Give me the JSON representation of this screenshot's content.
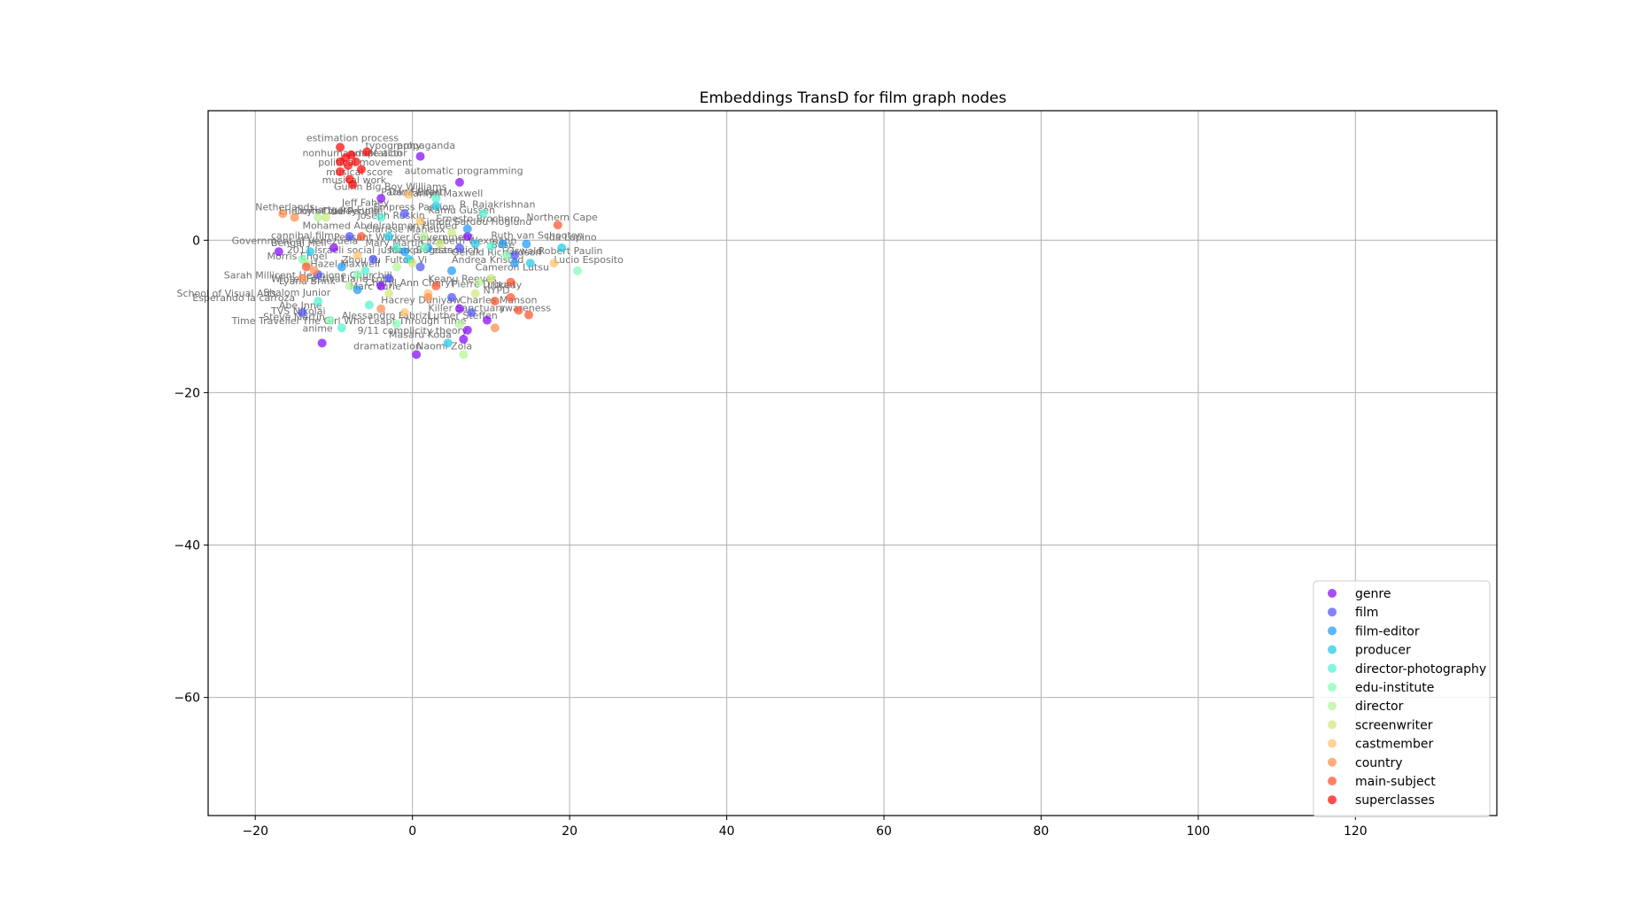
{
  "chart_data": {
    "type": "scatter",
    "title": "Embeddings TransD for film graph nodes",
    "xlabel": "",
    "ylabel": "",
    "xlim": [
      -26,
      138
    ],
    "ylim": [
      -75.5,
      17
    ],
    "xticks": [
      -20,
      0,
      20,
      40,
      60,
      80,
      100,
      120
    ],
    "yticks": [
      -60,
      -40,
      -20,
      0
    ],
    "grid": true,
    "legend_position": "lower-right",
    "colors": {
      "genre": "#8000ff",
      "film": "#4b4ffc",
      "film-editor": "#1a96f3",
      "producer": "#1ac7e6",
      "director-photography": "#4cf2ce",
      "edu-institute": "#7dfdb3",
      "director": "#b2f396",
      "screenwriter": "#cce878",
      "castmember": "#ffc066",
      "country": "#ff8a47",
      "main-subject": "#ff4d24",
      "superclasses": "#ff0000"
    },
    "series": [
      {
        "name": "genre",
        "points": [
          [
            1,
            11
          ],
          [
            6,
            7.6
          ],
          [
            -4,
            5.5
          ],
          [
            -17,
            -1.5
          ],
          [
            -10,
            -1
          ],
          [
            -11.5,
            -13.5
          ],
          [
            0.5,
            -15
          ],
          [
            6.5,
            -13
          ],
          [
            7,
            -11.8
          ],
          [
            9.5,
            -10.5
          ],
          [
            6,
            -9
          ],
          [
            -4,
            -6
          ],
          [
            7,
            0.5
          ]
        ]
      },
      {
        "name": "film",
        "points": [
          [
            -1,
            3.5
          ],
          [
            -12,
            -4.5
          ],
          [
            -3,
            -5
          ],
          [
            -5,
            -2.5
          ],
          [
            -14,
            -9.5
          ],
          [
            5,
            -7.5
          ],
          [
            7.5,
            -9.5
          ],
          [
            13,
            -2
          ],
          [
            1,
            -3.5
          ],
          [
            6,
            -1
          ],
          [
            -8,
            0.5
          ]
        ]
      },
      {
        "name": "film-editor",
        "points": [
          [
            7,
            1.5
          ],
          [
            11.5,
            -0.5
          ],
          [
            14.5,
            -0.5
          ],
          [
            5,
            -4
          ],
          [
            2,
            -1
          ],
          [
            -9,
            -3.5
          ],
          [
            -1,
            -1.5
          ],
          [
            13,
            -3
          ],
          [
            -7,
            -6.5
          ]
        ]
      },
      {
        "name": "producer",
        "points": [
          [
            3,
            4.5
          ],
          [
            -0.5,
            -2.5
          ],
          [
            4.5,
            -13.5
          ],
          [
            19,
            -1
          ],
          [
            -13,
            -1.5
          ],
          [
            15,
            -3
          ],
          [
            8,
            -0.5
          ],
          [
            -3,
            0.5
          ]
        ]
      },
      {
        "name": "director-photography",
        "points": [
          [
            9,
            3.5
          ],
          [
            -5.5,
            -8.5
          ],
          [
            -9,
            -11.5
          ],
          [
            -12,
            -8
          ],
          [
            3,
            5.5
          ],
          [
            -2,
            -1
          ],
          [
            -6,
            -4
          ],
          [
            10,
            -0.8
          ],
          [
            -4,
            3
          ]
        ]
      },
      {
        "name": "edu-institute",
        "points": [
          [
            21,
            -4
          ],
          [
            -7,
            -4.5
          ],
          [
            -10.5,
            -10.5
          ],
          [
            1.5,
            -1
          ],
          [
            12,
            -2
          ],
          [
            -14,
            -2.5
          ],
          [
            -2,
            -11
          ]
        ]
      },
      {
        "name": "director",
        "points": [
          [
            6.5,
            -15
          ],
          [
            -13.5,
            -3
          ],
          [
            -8,
            -6
          ],
          [
            1.5,
            0.5
          ],
          [
            6,
            -11
          ],
          [
            -12,
            3
          ],
          [
            8.5,
            -5.5
          ],
          [
            -2,
            -3.5
          ]
        ]
      },
      {
        "name": "screenwriter",
        "points": [
          [
            -11,
            3
          ],
          [
            10,
            -5
          ],
          [
            3.5,
            -0.5
          ],
          [
            -3,
            -7
          ],
          [
            0,
            -3
          ],
          [
            5,
            1
          ],
          [
            8,
            -7
          ]
        ]
      },
      {
        "name": "castmember",
        "points": [
          [
            -0.5,
            6
          ],
          [
            2,
            -7
          ],
          [
            18,
            -3
          ],
          [
            -1,
            -9.5
          ],
          [
            1,
            2.5
          ],
          [
            -7,
            -2
          ]
        ]
      },
      {
        "name": "country",
        "points": [
          [
            -16.5,
            3.5
          ],
          [
            -15,
            3
          ],
          [
            -12.5,
            -4
          ],
          [
            2,
            -7.5
          ],
          [
            10.5,
            -11.5
          ],
          [
            -4,
            -9
          ],
          [
            -14,
            -5
          ]
        ]
      },
      {
        "name": "main-subject",
        "points": [
          [
            18.5,
            2
          ],
          [
            14.8,
            -9.8
          ],
          [
            13.5,
            -9.2
          ],
          [
            12.5,
            -7.5
          ],
          [
            12.5,
            -5.5
          ],
          [
            3,
            -6
          ],
          [
            10.5,
            -8
          ],
          [
            -6.5,
            0.5
          ],
          [
            -13.5,
            -3.5
          ]
        ]
      },
      {
        "name": "superclasses",
        "points": [
          [
            -9.2,
            12.2
          ],
          [
            -5.8,
            11.6
          ],
          [
            -7.8,
            11.2
          ],
          [
            -7.2,
            10.3
          ],
          [
            -9.2,
            10.3
          ],
          [
            -8.5,
            10.8
          ],
          [
            -6.5,
            9.3
          ],
          [
            -8.2,
            9.8
          ],
          [
            -9.2,
            9
          ],
          [
            -8,
            8
          ],
          [
            -7.6,
            7.3
          ]
        ]
      }
    ],
    "annotations": [
      {
        "text": "estimation process",
        "x": -13.5,
        "y": 13
      },
      {
        "text": "typography",
        "x": -6,
        "y": 12
      },
      {
        "text": "propaganda",
        "x": -2,
        "y": 12
      },
      {
        "text": "nonhumanmale actor",
        "x": -14,
        "y": 11
      },
      {
        "text": "adaptation",
        "x": -8,
        "y": 11
      },
      {
        "text": "political movement",
        "x": -12,
        "y": 9.8
      },
      {
        "text": "musical score",
        "x": -11,
        "y": 8.5
      },
      {
        "text": "automatic programming",
        "x": -1,
        "y": 8.7
      },
      {
        "text": "musical work",
        "x": -11.5,
        "y": 7.5
      },
      {
        "text": "Guinn Big Boy Williams",
        "x": -10,
        "y": 6.6
      },
      {
        "text": "Paolo Ferrari",
        "x": -4,
        "y": 5.9
      },
      {
        "text": "Dave Boetti",
        "x": -3,
        "y": 5.9
      },
      {
        "text": "Marilyn Maxwell",
        "x": -1,
        "y": 5.7
      },
      {
        "text": "Jeff Fahey",
        "x": -9,
        "y": 4.5
      },
      {
        "text": "R. Rajakrishnan",
        "x": 6,
        "y": 4.3
      },
      {
        "text": "Netherlands",
        "x": -20,
        "y": 3.9
      },
      {
        "text": "Enemy of the People",
        "x": -17,
        "y": 3.4
      },
      {
        "text": "Hartgard Fundi",
        "x": -13,
        "y": 3.6
      },
      {
        "text": "Empress Passion",
        "x": -5,
        "y": 3.9
      },
      {
        "text": "Kamu Gussen",
        "x": 2,
        "y": 3.5
      },
      {
        "text": "Northern Cape",
        "x": 14.5,
        "y": 2.6
      },
      {
        "text": "Joseph Ruskin",
        "x": -7,
        "y": 2.8
      },
      {
        "text": "Ernesto Brochero",
        "x": 3,
        "y": 2.4
      },
      {
        "text": "Simon Sardou",
        "x": 1,
        "y": 2
      },
      {
        "text": "Doris Dudley",
        "x": -15,
        "y": 3.4
      },
      {
        "text": "Hoglund",
        "x": 10,
        "y": 2
      },
      {
        "text": "Mohamed Abdelrahman Hamed",
        "x": -14,
        "y": 1.5
      },
      {
        "text": "Clarisse Maheux",
        "x": -6,
        "y": 1
      },
      {
        "text": "Ida Lupino",
        "x": 17,
        "y": 0
      },
      {
        "text": "cannibal film",
        "x": -18,
        "y": 0.2
      },
      {
        "text": "Peasant Worker Government",
        "x": -10,
        "y": 0
      },
      {
        "text": "Ruth van Schooten",
        "x": 10,
        "y": 0.2
      },
      {
        "text": "Government of Venezuela",
        "x": -23,
        "y": -0.5
      },
      {
        "text": "Bengal Hell",
        "x": -18,
        "y": -0.8
      },
      {
        "text": "Mary Martin",
        "x": -6,
        "y": -0.8
      },
      {
        "text": "Elizabeth Wexmann",
        "x": 1,
        "y": -0.5
      },
      {
        "text": "Bose",
        "x": 10,
        "y": -1
      },
      {
        "text": "2011 Israeli social justice protests",
        "x": -16,
        "y": -1.7
      },
      {
        "text": "Mark Bogdanovich",
        "x": -3,
        "y": -1.7
      },
      {
        "text": "Gerald Richardson",
        "x": 5,
        "y": -2
      },
      {
        "text": "Oswald",
        "x": 12,
        "y": -1.8
      },
      {
        "text": "Robert Paulin",
        "x": 16,
        "y": -1.8
      },
      {
        "text": "Morris Engel",
        "x": -18.5,
        "y": -2.5
      },
      {
        "text": "Zhou Yu",
        "x": -9,
        "y": -3
      },
      {
        "text": "Fulton Vi",
        "x": -3.5,
        "y": -3
      },
      {
        "text": "Andrea Kristad",
        "x": 5,
        "y": -3
      },
      {
        "text": "Lucio Esposito",
        "x": 18,
        "y": -3
      },
      {
        "text": "Hazel Maxwell",
        "x": -13,
        "y": -3.5
      },
      {
        "text": "Cameron Lutsu",
        "x": 8,
        "y": -4
      },
      {
        "text": "Sarah Millicent Hermione Churchill",
        "x": -24,
        "y": -5
      },
      {
        "text": "Winter Festival",
        "x": -18,
        "y": -5.5
      },
      {
        "text": "Keanu Reeves",
        "x": 2,
        "y": -5.5
      },
      {
        "text": "Lyana Brink",
        "x": -17,
        "y": -5.8
      },
      {
        "text": "Liane Lobo",
        "x": -9,
        "y": -5.5
      },
      {
        "text": "Cheryl Ann Cheryl",
        "x": -6,
        "y": -6
      },
      {
        "text": "Pierre Drouot",
        "x": 5,
        "y": -6.2
      },
      {
        "text": "Lukedy",
        "x": 9.5,
        "y": -6.3
      },
      {
        "text": "Marc Vurie",
        "x": -8,
        "y": -6.5
      },
      {
        "text": "NYPD",
        "x": 9,
        "y": -7
      },
      {
        "text": "Shalom Junior",
        "x": -19,
        "y": -7.3
      },
      {
        "text": "School of Visual Arts",
        "x": -30,
        "y": -7.4
      },
      {
        "text": "Esperando la carroza",
        "x": -28,
        "y": -8
      },
      {
        "text": "Hacrey Duniyaw",
        "x": -4,
        "y": -8.3
      },
      {
        "text": "Charles Manson",
        "x": 6,
        "y": -8.3
      },
      {
        "text": "Abe Inne",
        "x": -17,
        "y": -9
      },
      {
        "text": "TVS Nikolai",
        "x": -18,
        "y": -9.7
      },
      {
        "text": "Killer Sanctuary",
        "x": 2,
        "y": -9.3
      },
      {
        "text": "awareness",
        "x": 11,
        "y": -9.3
      },
      {
        "text": "Alessandro Fabrizi",
        "x": -9,
        "y": -10.3
      },
      {
        "text": "Luther Steffen",
        "x": 2,
        "y": -10.3
      },
      {
        "text": "Steve Martin",
        "x": -19,
        "y": -10.5
      },
      {
        "text": "The Girl Who Leapt Through Time",
        "x": -14,
        "y": -11
      },
      {
        "text": "Time Traveller",
        "x": -23,
        "y": -11
      },
      {
        "text": "anime",
        "x": -14,
        "y": -12
      },
      {
        "text": "9/11 complicity theory",
        "x": -7,
        "y": -12.3
      },
      {
        "text": "Masaru Koda",
        "x": -3,
        "y": -12.8
      },
      {
        "text": "dramatization",
        "x": -7.5,
        "y": -14.3
      },
      {
        "text": "Naomi Zola",
        "x": 0.5,
        "y": -14.3
      }
    ]
  }
}
